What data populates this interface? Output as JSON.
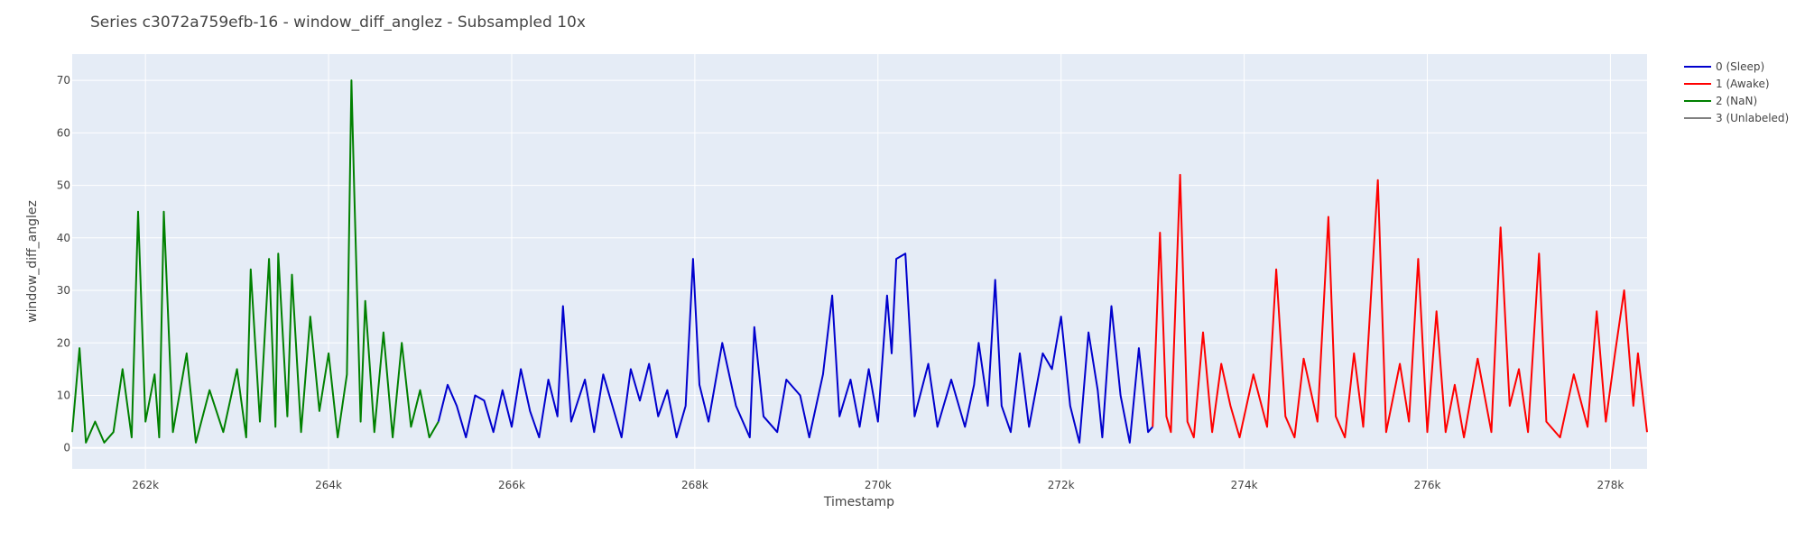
{
  "chart_data": {
    "type": "line",
    "title": "Series c3072a759efb-16 - window_diff_anglez - Subsampled 10x",
    "xlabel": "Timestamp",
    "ylabel": "window_diff_anglez",
    "xlim": [
      261200,
      278400
    ],
    "ylim": [
      -4,
      75
    ],
    "x_ticks": [
      262000,
      264000,
      266000,
      268000,
      270000,
      272000,
      274000,
      276000,
      278000
    ],
    "x_tick_labels": [
      "262k",
      "264k",
      "266k",
      "268k",
      "270k",
      "272k",
      "274k",
      "276k",
      "278k"
    ],
    "y_ticks": [
      0,
      10,
      20,
      30,
      40,
      50,
      60,
      70
    ],
    "y_tick_labels": [
      "0",
      "10",
      "20",
      "30",
      "40",
      "50",
      "60",
      "70"
    ],
    "grid": true,
    "legend_position": "top-right outside",
    "series": [
      {
        "name": "0 (Sleep)",
        "color": "#0000cd",
        "points": [
          [
            265200,
            5
          ],
          [
            265300,
            12
          ],
          [
            265400,
            8
          ],
          [
            265500,
            2
          ],
          [
            265600,
            10
          ],
          [
            265700,
            9
          ],
          [
            265800,
            3
          ],
          [
            265900,
            11
          ],
          [
            266000,
            4
          ],
          [
            266100,
            15
          ],
          [
            266200,
            7
          ],
          [
            266300,
            2
          ],
          [
            266400,
            13
          ],
          [
            266500,
            6
          ],
          [
            266560,
            27
          ],
          [
            266650,
            5
          ],
          [
            266800,
            13
          ],
          [
            266900,
            3
          ],
          [
            267000,
            14
          ],
          [
            267100,
            8
          ],
          [
            267200,
            2
          ],
          [
            267300,
            15
          ],
          [
            267400,
            9
          ],
          [
            267500,
            16
          ],
          [
            267600,
            6
          ],
          [
            267700,
            11
          ],
          [
            267800,
            2
          ],
          [
            267900,
            8
          ],
          [
            267980,
            36
          ],
          [
            268050,
            12
          ],
          [
            268150,
            5
          ],
          [
            268300,
            20
          ],
          [
            268450,
            8
          ],
          [
            268600,
            2
          ],
          [
            268650,
            23
          ],
          [
            268750,
            6
          ],
          [
            268900,
            3
          ],
          [
            269000,
            13
          ],
          [
            269150,
            10
          ],
          [
            269250,
            2
          ],
          [
            269400,
            14
          ],
          [
            269500,
            29
          ],
          [
            269580,
            6
          ],
          [
            269700,
            13
          ],
          [
            269800,
            4
          ],
          [
            269900,
            15
          ],
          [
            270000,
            5
          ],
          [
            270100,
            29
          ],
          [
            270150,
            18
          ],
          [
            270200,
            36
          ],
          [
            270300,
            37
          ],
          [
            270400,
            6
          ],
          [
            270550,
            16
          ],
          [
            270650,
            4
          ],
          [
            270800,
            13
          ],
          [
            270950,
            4
          ],
          [
            271050,
            12
          ],
          [
            271100,
            20
          ],
          [
            271200,
            8
          ],
          [
            271280,
            32
          ],
          [
            271350,
            8
          ],
          [
            271450,
            3
          ],
          [
            271550,
            18
          ],
          [
            271650,
            4
          ],
          [
            271800,
            18
          ],
          [
            271900,
            15
          ],
          [
            272000,
            25
          ],
          [
            272100,
            8
          ],
          [
            272200,
            1
          ],
          [
            272300,
            22
          ],
          [
            272400,
            11
          ],
          [
            272450,
            2
          ],
          [
            272550,
            27
          ],
          [
            272650,
            10
          ],
          [
            272750,
            1
          ],
          [
            272850,
            19
          ],
          [
            272950,
            3
          ],
          [
            273000,
            4
          ]
        ]
      },
      {
        "name": "1 (Awake)",
        "color": "#ff0000",
        "points": [
          [
            273000,
            4
          ],
          [
            273080,
            41
          ],
          [
            273150,
            6
          ],
          [
            273200,
            3
          ],
          [
            273300,
            52
          ],
          [
            273380,
            5
          ],
          [
            273450,
            2
          ],
          [
            273550,
            22
          ],
          [
            273650,
            3
          ],
          [
            273750,
            16
          ],
          [
            273850,
            8
          ],
          [
            273950,
            2
          ],
          [
            274100,
            14
          ],
          [
            274250,
            4
          ],
          [
            274350,
            34
          ],
          [
            274450,
            6
          ],
          [
            274550,
            2
          ],
          [
            274650,
            17
          ],
          [
            274800,
            5
          ],
          [
            274920,
            44
          ],
          [
            275000,
            6
          ],
          [
            275100,
            2
          ],
          [
            275200,
            18
          ],
          [
            275300,
            4
          ],
          [
            275460,
            51
          ],
          [
            275550,
            3
          ],
          [
            275700,
            16
          ],
          [
            275800,
            5
          ],
          [
            275900,
            36
          ],
          [
            276000,
            3
          ],
          [
            276100,
            26
          ],
          [
            276200,
            3
          ],
          [
            276300,
            12
          ],
          [
            276400,
            2
          ],
          [
            276550,
            17
          ],
          [
            276700,
            3
          ],
          [
            276800,
            42
          ],
          [
            276900,
            8
          ],
          [
            277000,
            15
          ],
          [
            277100,
            3
          ],
          [
            277220,
            37
          ],
          [
            277300,
            5
          ],
          [
            277450,
            2
          ],
          [
            277600,
            14
          ],
          [
            277750,
            4
          ],
          [
            277850,
            26
          ],
          [
            277950,
            5
          ],
          [
            278050,
            18
          ],
          [
            278150,
            30
          ],
          [
            278250,
            8
          ],
          [
            278300,
            18
          ],
          [
            278400,
            3
          ]
        ]
      },
      {
        "name": "2 (NaN)",
        "color": "#008000",
        "points": [
          [
            261200,
            3
          ],
          [
            261280,
            19
          ],
          [
            261350,
            1
          ],
          [
            261450,
            5
          ],
          [
            261550,
            1
          ],
          [
            261650,
            3
          ],
          [
            261750,
            15
          ],
          [
            261850,
            2
          ],
          [
            261920,
            45
          ],
          [
            262000,
            5
          ],
          [
            262100,
            14
          ],
          [
            262150,
            2
          ],
          [
            262200,
            45
          ],
          [
            262300,
            3
          ],
          [
            262450,
            18
          ],
          [
            262550,
            1
          ],
          [
            262700,
            11
          ],
          [
            262850,
            3
          ],
          [
            263000,
            15
          ],
          [
            263100,
            2
          ],
          [
            263150,
            34
          ],
          [
            263250,
            5
          ],
          [
            263350,
            36
          ],
          [
            263420,
            4
          ],
          [
            263450,
            37
          ],
          [
            263550,
            6
          ],
          [
            263600,
            33
          ],
          [
            263700,
            3
          ],
          [
            263800,
            25
          ],
          [
            263900,
            7
          ],
          [
            264000,
            18
          ],
          [
            264100,
            2
          ],
          [
            264200,
            14
          ],
          [
            264250,
            70
          ],
          [
            264280,
            49
          ],
          [
            264350,
            5
          ],
          [
            264400,
            28
          ],
          [
            264500,
            3
          ],
          [
            264600,
            22
          ],
          [
            264700,
            2
          ],
          [
            264800,
            20
          ],
          [
            264900,
            4
          ],
          [
            265000,
            11
          ],
          [
            265100,
            2
          ],
          [
            265200,
            5
          ]
        ]
      },
      {
        "name": "3 (Unlabeled)",
        "color": "#808080",
        "points": []
      }
    ]
  }
}
